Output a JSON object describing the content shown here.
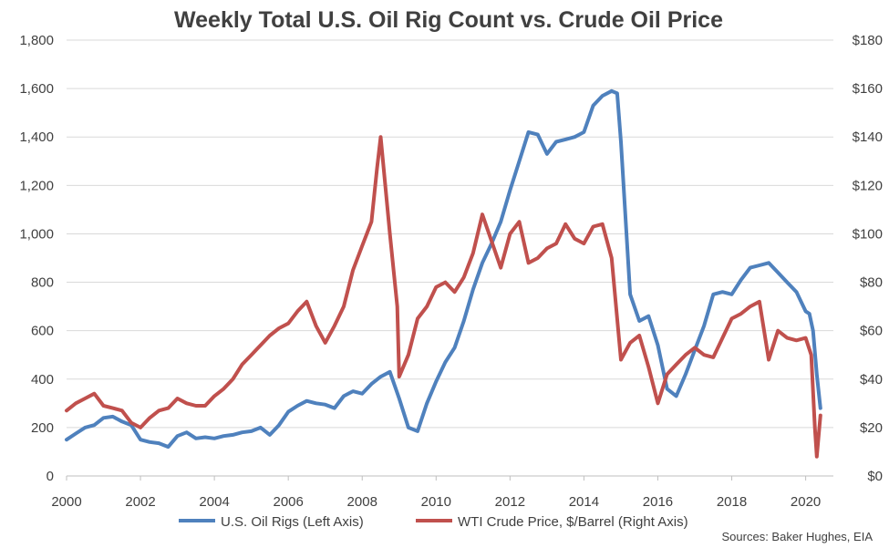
{
  "chart_data": {
    "type": "line",
    "title": "Weekly Total U.S. Oil Rig Count vs. Crude Oil Price",
    "source_note": "Sources: Baker Hughes, EIA",
    "x_ticks": [
      "2000",
      "2002",
      "2004",
      "2006",
      "2008",
      "2010",
      "2012",
      "2014",
      "2016",
      "2018",
      "2020"
    ],
    "x_range": [
      2000,
      2020.75
    ],
    "y_left": {
      "range": [
        0,
        1800
      ],
      "ticks": [
        "0",
        "200",
        "400",
        "600",
        "800",
        "1,000",
        "1,200",
        "1,400",
        "1,600",
        "1,800"
      ]
    },
    "y_right": {
      "range": [
        0,
        180
      ],
      "ticks": [
        "$0",
        "$20",
        "$40",
        "$60",
        "$80",
        "$100",
        "$120",
        "$140",
        "$160",
        "$180"
      ]
    },
    "grid": true,
    "legend_position": "bottom",
    "series": [
      {
        "name": "U.S. Oil Rigs (Left Axis)",
        "color": "#4F81BD",
        "axis": "left",
        "x": [
          2000.0,
          2000.25,
          2000.5,
          2000.75,
          2001.0,
          2001.25,
          2001.5,
          2001.75,
          2002.0,
          2002.25,
          2002.5,
          2002.75,
          2003.0,
          2003.25,
          2003.5,
          2003.75,
          2004.0,
          2004.25,
          2004.5,
          2004.75,
          2005.0,
          2005.25,
          2005.5,
          2005.75,
          2006.0,
          2006.25,
          2006.5,
          2006.75,
          2007.0,
          2007.25,
          2007.5,
          2007.75,
          2008.0,
          2008.25,
          2008.5,
          2008.75,
          2009.0,
          2009.25,
          2009.5,
          2009.75,
          2010.0,
          2010.25,
          2010.5,
          2010.75,
          2011.0,
          2011.25,
          2011.5,
          2011.75,
          2012.0,
          2012.25,
          2012.5,
          2012.75,
          2013.0,
          2013.25,
          2013.5,
          2013.75,
          2014.0,
          2014.25,
          2014.5,
          2014.75,
          2014.9,
          2015.0,
          2015.25,
          2015.5,
          2015.75,
          2016.0,
          2016.25,
          2016.5,
          2016.75,
          2017.0,
          2017.25,
          2017.5,
          2017.75,
          2018.0,
          2018.25,
          2018.5,
          2018.75,
          2019.0,
          2019.25,
          2019.5,
          2019.75,
          2020.0,
          2020.1,
          2020.2,
          2020.3,
          2020.4
        ],
        "values": [
          150,
          175,
          200,
          210,
          240,
          245,
          225,
          210,
          150,
          140,
          135,
          120,
          165,
          180,
          155,
          160,
          155,
          165,
          170,
          180,
          185,
          200,
          170,
          210,
          265,
          290,
          310,
          300,
          295,
          280,
          330,
          350,
          340,
          380,
          410,
          430,
          320,
          200,
          185,
          300,
          390,
          470,
          530,
          640,
          770,
          880,
          960,
          1050,
          1180,
          1300,
          1420,
          1410,
          1330,
          1380,
          1390,
          1400,
          1420,
          1530,
          1570,
          1590,
          1580,
          1380,
          750,
          640,
          660,
          540,
          360,
          330,
          420,
          520,
          620,
          750,
          760,
          750,
          810,
          860,
          870,
          880,
          840,
          800,
          760,
          680,
          670,
          600,
          420,
          280
        ]
      },
      {
        "name": "WTI Crude Price, $/Barrel (Right Axis)",
        "color": "#C0504D",
        "axis": "right",
        "x": [
          2000.0,
          2000.25,
          2000.5,
          2000.75,
          2001.0,
          2001.25,
          2001.5,
          2001.75,
          2002.0,
          2002.25,
          2002.5,
          2002.75,
          2003.0,
          2003.25,
          2003.5,
          2003.75,
          2004.0,
          2004.25,
          2004.5,
          2004.75,
          2005.0,
          2005.25,
          2005.5,
          2005.75,
          2006.0,
          2006.25,
          2006.5,
          2006.75,
          2007.0,
          2007.25,
          2007.5,
          2007.75,
          2008.0,
          2008.25,
          2008.4,
          2008.5,
          2008.75,
          2008.95,
          2009.0,
          2009.25,
          2009.5,
          2009.75,
          2010.0,
          2010.25,
          2010.5,
          2010.75,
          2011.0,
          2011.25,
          2011.5,
          2011.75,
          2012.0,
          2012.25,
          2012.5,
          2012.75,
          2013.0,
          2013.25,
          2013.5,
          2013.75,
          2014.0,
          2014.25,
          2014.5,
          2014.75,
          2015.0,
          2015.25,
          2015.5,
          2015.75,
          2016.0,
          2016.25,
          2016.5,
          2016.75,
          2017.0,
          2017.25,
          2017.5,
          2017.75,
          2018.0,
          2018.25,
          2018.5,
          2018.75,
          2019.0,
          2019.25,
          2019.5,
          2019.75,
          2020.0,
          2020.15,
          2020.25,
          2020.3,
          2020.4
        ],
        "values": [
          27,
          30,
          32,
          34,
          29,
          28,
          27,
          22,
          20,
          24,
          27,
          28,
          32,
          30,
          29,
          29,
          33,
          36,
          40,
          46,
          50,
          54,
          58,
          61,
          63,
          68,
          72,
          62,
          55,
          62,
          70,
          85,
          95,
          105,
          127,
          140,
          100,
          70,
          41,
          50,
          65,
          70,
          78,
          80,
          76,
          82,
          92,
          108,
          97,
          86,
          100,
          105,
          88,
          90,
          94,
          96,
          104,
          98,
          96,
          103,
          104,
          90,
          48,
          55,
          58,
          45,
          30,
          42,
          46,
          50,
          53,
          50,
          49,
          57,
          65,
          67,
          70,
          72,
          48,
          60,
          57,
          56,
          57,
          50,
          20,
          8,
          25
        ]
      }
    ]
  }
}
